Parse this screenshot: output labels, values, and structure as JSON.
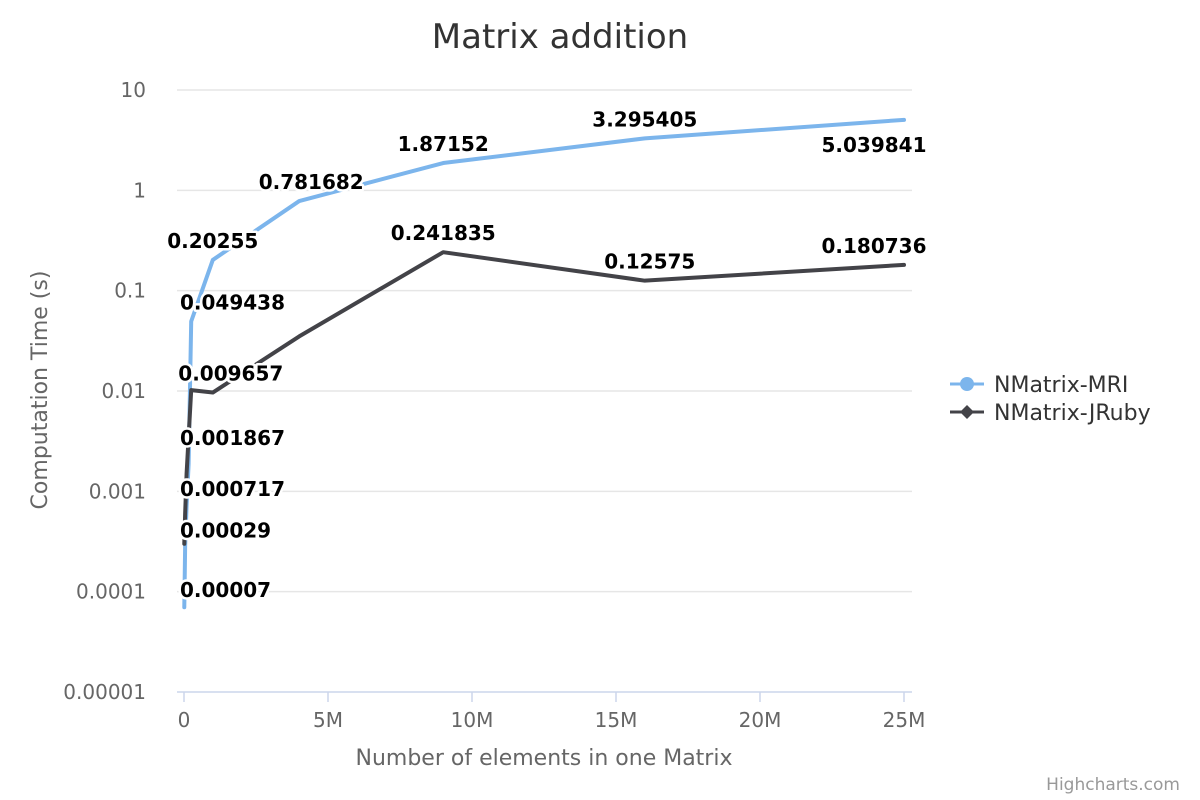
{
  "chart_data": {
    "type": "line",
    "title": "Matrix addition",
    "xlabel": "Number of elements in one Matrix",
    "ylabel": "Computation Time (s)",
    "xlim": [
      0,
      25000000
    ],
    "ylim": [
      1e-05,
      10
    ],
    "y_scale": "log",
    "grid": "horizontal",
    "legend_position": "right",
    "x_ticks": [
      0,
      5000000,
      10000000,
      15000000,
      20000000,
      25000000
    ],
    "x_tick_labels": [
      "0",
      "5M",
      "10M",
      "15M",
      "20M",
      "25M"
    ],
    "y_ticks": [
      1e-05,
      0.0001,
      0.001,
      0.01,
      0.1,
      1,
      10
    ],
    "y_tick_labels": [
      "0.00001",
      "0.0001",
      "0.001",
      "0.01",
      "0.1",
      "1",
      "10"
    ],
    "series": [
      {
        "name": "NMatrix-MRI",
        "color": "#7cb5ec",
        "marker": "circle",
        "points": [
          {
            "x": 10000,
            "y": 7e-05,
            "label": "0.00007"
          },
          {
            "x": 40000,
            "y": 0.00029,
            "label": "0.00029"
          },
          {
            "x": 90000,
            "y": 0.000717,
            "label": "0.000717"
          },
          {
            "x": 160000,
            "y": 0.001867,
            "label": "0.001867"
          },
          {
            "x": 250000,
            "y": 0.049438,
            "label": "0.049438"
          },
          {
            "x": 1000000,
            "y": 0.20255,
            "label": "0.20255"
          },
          {
            "x": 4000000,
            "y": 0.781682,
            "label": "0.781682"
          },
          {
            "x": 9000000,
            "y": 1.87152,
            "label": "1.87152"
          },
          {
            "x": 16000000,
            "y": 3.295405,
            "label": "3.295405"
          },
          {
            "x": 25000000,
            "y": 5.039841,
            "label": "5.039841"
          }
        ]
      },
      {
        "name": "NMatrix-JRuby",
        "color": "#434348",
        "marker": "diamond",
        "points": [
          {
            "x": 10000,
            "y": 0.0003,
            "label": ""
          },
          {
            "x": 40000,
            "y": 0.0006,
            "label": ""
          },
          {
            "x": 90000,
            "y": 0.0015,
            "label": ""
          },
          {
            "x": 250000,
            "y": 0.0102,
            "label": ""
          },
          {
            "x": 1000000,
            "y": 0.009657,
            "label": "0.009657"
          },
          {
            "x": 4000000,
            "y": 0.035,
            "label": ""
          },
          {
            "x": 9000000,
            "y": 0.241835,
            "label": "0.241835"
          },
          {
            "x": 16000000,
            "y": 0.12575,
            "label": "0.12575"
          },
          {
            "x": 25000000,
            "y": 0.180736,
            "label": "0.180736"
          }
        ]
      }
    ]
  },
  "credits": "Highcharts.com"
}
